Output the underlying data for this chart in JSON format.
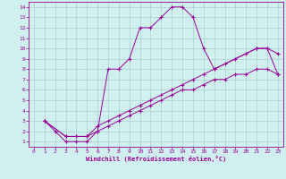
{
  "xlabel": "Windchill (Refroidissement éolien,°C)",
  "bg_color": "#cff0ee",
  "grid_color": "#aacfcc",
  "line_color": "#990099",
  "spine_color": "#990099",
  "xlim": [
    -0.5,
    23.5
  ],
  "ylim": [
    0.5,
    14.5
  ],
  "xticks": [
    0,
    1,
    2,
    3,
    4,
    5,
    6,
    7,
    8,
    9,
    10,
    11,
    12,
    13,
    14,
    15,
    16,
    17,
    18,
    19,
    20,
    21,
    22,
    23
  ],
  "yticks": [
    1,
    2,
    3,
    4,
    5,
    6,
    7,
    8,
    9,
    10,
    11,
    12,
    13,
    14
  ],
  "line1_x": [
    1,
    2,
    3,
    4,
    5,
    6,
    7,
    8,
    9,
    10,
    11,
    12,
    13,
    14,
    15,
    16,
    17,
    21,
    22,
    23
  ],
  "line1_y": [
    3,
    2,
    1,
    1,
    1,
    2,
    8,
    8,
    9,
    12,
    12,
    13,
    14,
    14,
    13,
    10,
    8,
    10,
    10,
    7.5
  ],
  "line2_x": [
    1,
    3,
    4,
    5,
    6,
    7,
    8,
    9,
    10,
    11,
    12,
    13,
    14,
    15,
    16,
    17,
    18,
    19,
    20,
    21,
    22,
    23
  ],
  "line2_y": [
    3,
    1.5,
    1.5,
    1.5,
    2.5,
    3,
    3.5,
    4,
    4.5,
    5,
    5.5,
    6,
    6.5,
    7,
    7.5,
    8,
    8.5,
    9,
    9.5,
    10,
    10,
    9.5
  ],
  "line3_x": [
    1,
    3,
    4,
    5,
    6,
    7,
    8,
    9,
    10,
    11,
    12,
    13,
    14,
    15,
    16,
    17,
    18,
    19,
    20,
    21,
    22,
    23
  ],
  "line3_y": [
    3,
    1.5,
    1.5,
    1.5,
    2,
    2.5,
    3,
    3.5,
    4,
    4.5,
    5,
    5.5,
    6,
    6,
    6.5,
    7,
    7,
    7.5,
    7.5,
    8,
    8,
    7.5
  ]
}
